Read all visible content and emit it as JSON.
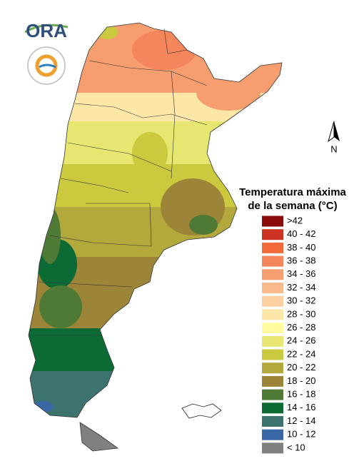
{
  "logo": {
    "text": "ORA"
  },
  "north_arrow": {
    "label": "N"
  },
  "legend": {
    "title_lines": [
      "Temperatura máxima",
      "de la semana (°C)"
    ],
    "items": [
      {
        "label": ">42",
        "color": "#8b0a0a"
      },
      {
        "label": "40 - 42",
        "color": "#cc3322"
      },
      {
        "label": "38 - 40",
        "color": "#f26a3a"
      },
      {
        "label": "36 - 38",
        "color": "#f5855a"
      },
      {
        "label": "34 - 36",
        "color": "#f79e70"
      },
      {
        "label": "32 - 34",
        "color": "#f9b98a"
      },
      {
        "label": "30 - 32",
        "color": "#fbd0a0"
      },
      {
        "label": "28 - 30",
        "color": "#fde7a8"
      },
      {
        "label": "26 - 28",
        "color": "#fefc9c"
      },
      {
        "label": "24 - 26",
        "color": "#e6e670"
      },
      {
        "label": "22 - 24",
        "color": "#cbc93e"
      },
      {
        "label": "20 - 22",
        "color": "#b2a83c"
      },
      {
        "label": "18 - 20",
        "color": "#9c8538"
      },
      {
        "label": "16 - 18",
        "color": "#4e7a36"
      },
      {
        "label": "14 - 16",
        "color": "#0c6a34"
      },
      {
        "label": "12 - 14",
        "color": "#3d736e"
      },
      {
        "label": "10 - 12",
        "color": "#3a68a6"
      },
      {
        "label": "< 10",
        "color": "#808080"
      }
    ]
  }
}
